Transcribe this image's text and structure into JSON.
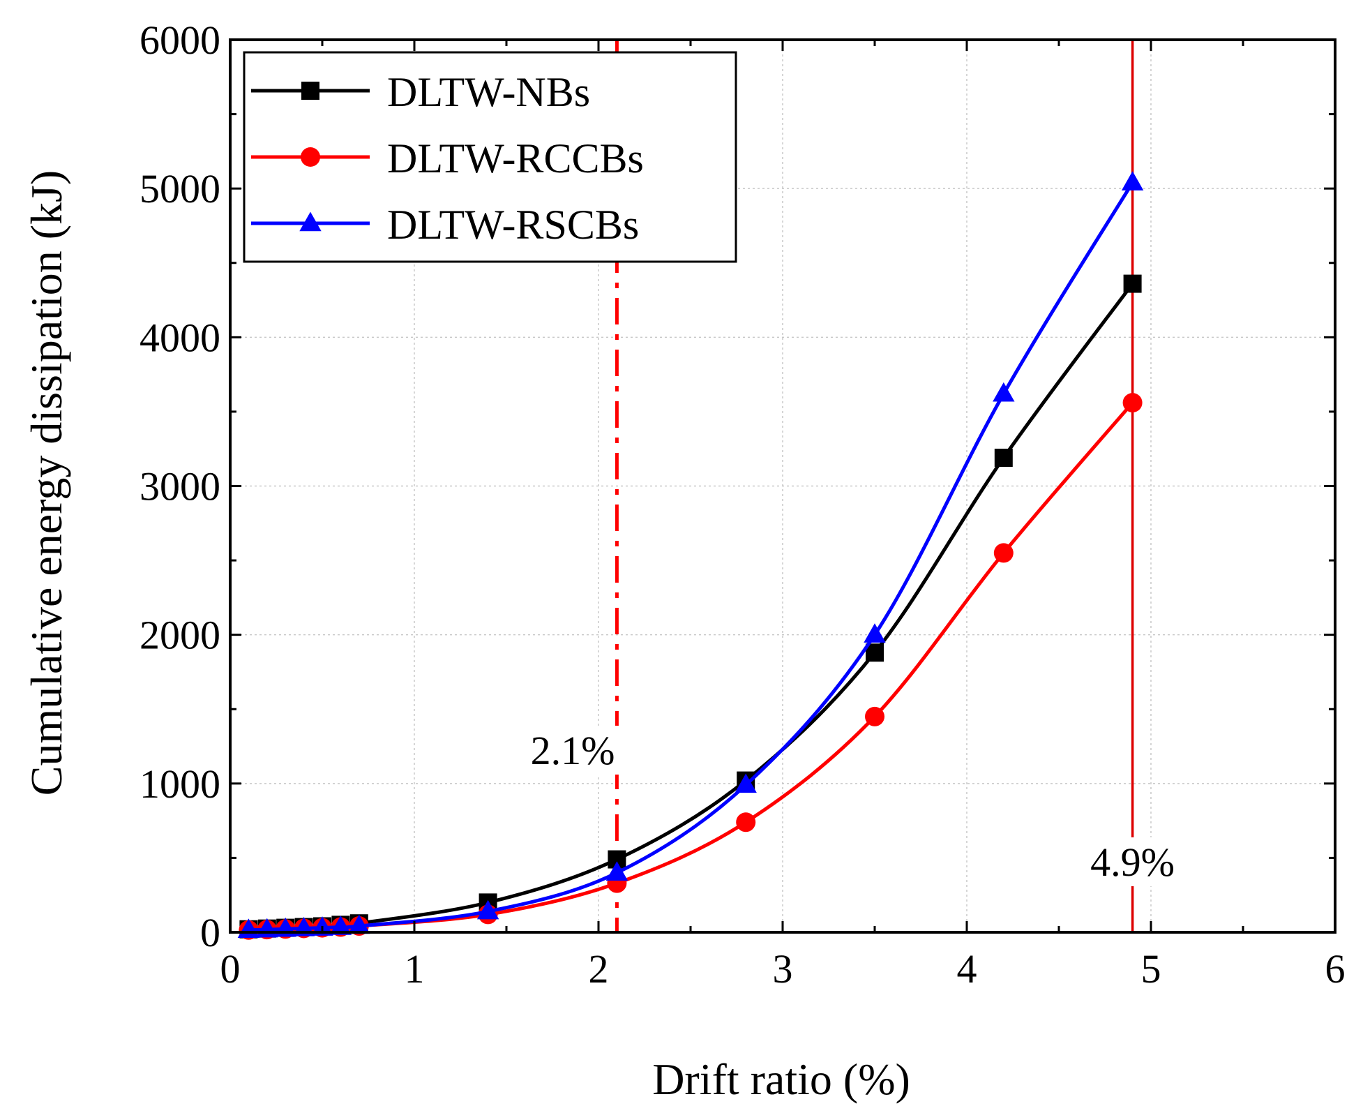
{
  "chart_data": {
    "type": "line",
    "title": "",
    "xlabel": "Drift ratio (%)",
    "ylabel": "Cumulative energy dissipation (kJ)",
    "xlim": [
      0,
      6
    ],
    "ylim": [
      0,
      6000
    ],
    "xticks": [
      0,
      1,
      2,
      3,
      4,
      5,
      6
    ],
    "yticks": [
      0,
      1000,
      2000,
      3000,
      4000,
      5000,
      6000
    ],
    "xtick_labels": [
      "0",
      "1",
      "2",
      "3",
      "4",
      "5",
      "6"
    ],
    "ytick_labels": [
      "0",
      "1000",
      "2000",
      "3000",
      "4000",
      "5000",
      "6000"
    ],
    "grid": true,
    "legend_position": "top-left",
    "series": [
      {
        "name": "DLTW-NBs",
        "color": "#000000",
        "marker": "square",
        "x": [
          0.1,
          0.2,
          0.3,
          0.4,
          0.5,
          0.6,
          0.7,
          1.4,
          2.1,
          2.8,
          3.5,
          4.2,
          4.9
        ],
        "values": [
          20,
          25,
          30,
          35,
          40,
          50,
          60,
          200,
          490,
          1020,
          1880,
          3190,
          4360
        ]
      },
      {
        "name": "DLTW-RCCBs",
        "color": "#ff0000",
        "marker": "circle",
        "x": [
          0.1,
          0.2,
          0.3,
          0.4,
          0.5,
          0.6,
          0.7,
          1.4,
          2.1,
          2.8,
          3.5,
          4.2,
          4.9
        ],
        "values": [
          15,
          18,
          22,
          26,
          30,
          35,
          42,
          120,
          330,
          740,
          1450,
          2550,
          3560
        ]
      },
      {
        "name": "DLTW-RSCBs",
        "color": "#0000ff",
        "marker": "triangle",
        "x": [
          0.1,
          0.2,
          0.3,
          0.4,
          0.5,
          0.6,
          0.7,
          1.4,
          2.1,
          2.8,
          3.5,
          4.2,
          4.9
        ],
        "values": [
          15,
          18,
          22,
          26,
          30,
          35,
          42,
          140,
          400,
          990,
          2000,
          3620,
          5040
        ]
      }
    ],
    "vlines": [
      {
        "x": 2.1,
        "label": "2.1%",
        "style": "dashdot",
        "color": "#ff0000"
      },
      {
        "x": 4.9,
        "label": "4.9%",
        "style": "solid",
        "color": "#dd0000"
      }
    ]
  }
}
